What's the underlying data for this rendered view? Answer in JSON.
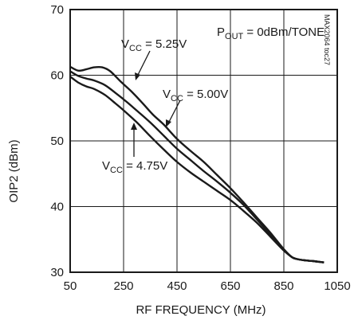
{
  "chart_data": {
    "type": "line",
    "xlabel": "RF FREQUENCY (MHz)",
    "ylabel": "OIP2 (dBm)",
    "xlim": [
      50,
      1050
    ],
    "ylim": [
      30,
      70
    ],
    "xticks": [
      50,
      250,
      450,
      650,
      850,
      1050
    ],
    "yticks": [
      30,
      40,
      50,
      60,
      70
    ],
    "xtick_labels": [
      "50",
      "250",
      "450",
      "650",
      "850",
      "1050"
    ],
    "ytick_labels": [
      "30",
      "40",
      "50",
      "60",
      "70"
    ],
    "grid": true,
    "side_code": "MAX2064 toc27",
    "condition": {
      "main": "P",
      "sub": "OUT",
      "rest": " = 0dBm/TONE"
    },
    "series": [
      {
        "name": "VCC = 5.25V",
        "label_main": "V",
        "label_sub": "CC",
        "label_rest": " = 5.25V",
        "x": [
          50,
          80,
          110,
          140,
          170,
          200,
          240,
          280,
          320,
          360,
          400,
          450,
          500,
          550,
          600,
          650,
          700,
          750,
          800,
          850,
          880,
          900,
          930,
          960,
          1000
        ],
        "values": [
          61.3,
          60.7,
          60.9,
          61.2,
          61.2,
          60.6,
          59.0,
          57.5,
          55.8,
          54.0,
          52.5,
          50.3,
          48.5,
          46.8,
          44.8,
          42.8,
          40.6,
          38.3,
          36.0,
          33.5,
          32.3,
          32.0,
          31.8,
          31.7,
          31.5
        ]
      },
      {
        "name": "VCC = 5.00V",
        "label_main": "V",
        "label_sub": "CC",
        "label_rest": " = 5.00V",
        "x": [
          50,
          80,
          110,
          140,
          180,
          220,
          260,
          300,
          350,
          400,
          450,
          500,
          550,
          600,
          650,
          700,
          750,
          800,
          850,
          880,
          900,
          930,
          960,
          1000
        ],
        "values": [
          60.6,
          59.9,
          59.5,
          59.2,
          58.5,
          57.3,
          56.0,
          54.6,
          52.8,
          50.8,
          48.8,
          47.1,
          45.4,
          43.8,
          42.1,
          40.2,
          38.0,
          35.7,
          33.4,
          32.3,
          32.0,
          31.8,
          31.7,
          31.5
        ]
      },
      {
        "name": "VCC = 4.75V",
        "label_main": "V",
        "label_sub": "CC",
        "label_rest": " = 4.75V",
        "x": [
          50,
          80,
          110,
          140,
          180,
          220,
          260,
          300,
          350,
          400,
          450,
          500,
          550,
          600,
          650,
          700,
          750,
          800,
          850,
          880,
          900,
          930,
          960,
          1000
        ],
        "values": [
          59.8,
          58.9,
          58.3,
          57.9,
          57.0,
          55.7,
          54.3,
          52.8,
          50.7,
          48.7,
          46.8,
          45.2,
          43.8,
          42.4,
          41.0,
          39.3,
          37.5,
          35.4,
          33.3,
          32.3,
          32.0,
          31.8,
          31.7,
          31.5
        ]
      }
    ]
  }
}
